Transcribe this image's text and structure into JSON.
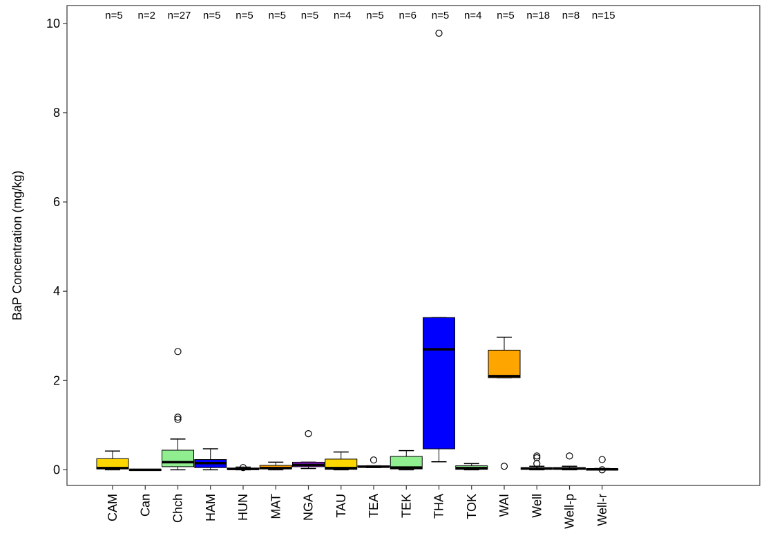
{
  "chart_data": {
    "type": "boxplot",
    "title": "",
    "xlabel": "",
    "ylabel": "BaP Concentration (mg/kg)",
    "ylim": [
      -0.35,
      10.4
    ],
    "yticks": [
      0,
      2,
      4,
      6,
      8,
      10
    ],
    "grid": false,
    "legend": "none",
    "categories": [
      "CAM",
      "Can",
      "Chch",
      "HAM",
      "HUN",
      "MAT",
      "NGA",
      "TAU",
      "TEA",
      "TEK",
      "THA",
      "TOK",
      "WAI",
      "Well",
      "Well-p",
      "Well-r"
    ],
    "n_labels": [
      "n=5",
      "n=2",
      "n=27",
      "n=5",
      "n=5",
      "n=5",
      "n=5",
      "n=4",
      "n=5",
      "n=6",
      "n=5",
      "n=4",
      "n=5",
      "n=18",
      "n=8",
      "n=15"
    ],
    "boxes": [
      {
        "category": "CAM",
        "color": "#ffd700",
        "whisker_low": 0.0,
        "q1": 0.02,
        "median": 0.04,
        "q3": 0.25,
        "whisker_high": 0.42,
        "outliers": []
      },
      {
        "category": "Can",
        "color": "#ffd700",
        "whisker_low": 0.0,
        "q1": 0.0,
        "median": 0.0,
        "q3": 0.01,
        "whisker_high": 0.01,
        "outliers": []
      },
      {
        "category": "Chch",
        "color": "#90ee90",
        "whisker_low": 0.0,
        "q1": 0.07,
        "median": 0.17,
        "q3": 0.44,
        "whisker_high": 0.69,
        "outliers": [
          1.13,
          1.18,
          2.65
        ]
      },
      {
        "category": "HAM",
        "color": "#0000ff",
        "whisker_low": 0.0,
        "q1": 0.05,
        "median": 0.15,
        "q3": 0.23,
        "whisker_high": 0.47,
        "outliers": []
      },
      {
        "category": "HUN",
        "color": "#ffd700",
        "whisker_low": 0.0,
        "q1": 0.01,
        "median": 0.02,
        "q3": 0.04,
        "whisker_high": 0.06,
        "outliers": [
          0.05
        ]
      },
      {
        "category": "MAT",
        "color": "#ffa500",
        "whisker_low": 0.0,
        "q1": 0.02,
        "median": 0.04,
        "q3": 0.1,
        "whisker_high": 0.17,
        "outliers": []
      },
      {
        "category": "NGA",
        "color": "#a020f0",
        "whisker_low": 0.03,
        "q1": 0.07,
        "median": 0.11,
        "q3": 0.17,
        "whisker_high": 0.17,
        "outliers": [
          0.81
        ]
      },
      {
        "category": "TAU",
        "color": "#ffd700",
        "whisker_low": 0.0,
        "q1": 0.01,
        "median": 0.04,
        "q3": 0.24,
        "whisker_high": 0.4,
        "outliers": []
      },
      {
        "category": "TEA",
        "color": "#90ee90",
        "whisker_low": 0.05,
        "q1": 0.06,
        "median": 0.07,
        "q3": 0.09,
        "whisker_high": 0.09,
        "outliers": [
          0.22
        ]
      },
      {
        "category": "TEK",
        "color": "#90ee90",
        "whisker_low": 0.0,
        "q1": 0.02,
        "median": 0.05,
        "q3": 0.3,
        "whisker_high": 0.43,
        "outliers": []
      },
      {
        "category": "THA",
        "color": "#0000ff",
        "whisker_low": 0.18,
        "q1": 0.47,
        "median": 2.7,
        "q3": 3.41,
        "whisker_high": 3.41,
        "outliers": [
          9.78
        ]
      },
      {
        "category": "TOK",
        "color": "#90ee90",
        "whisker_low": 0.0,
        "q1": 0.01,
        "median": 0.04,
        "q3": 0.09,
        "whisker_high": 0.14,
        "outliers": []
      },
      {
        "category": "WAI",
        "color": "#ffa500",
        "whisker_low": 2.06,
        "q1": 2.06,
        "median": 2.1,
        "q3": 2.68,
        "whisker_high": 2.97,
        "outliers": [
          0.08
        ]
      },
      {
        "category": "Well",
        "color": "#ffd700",
        "whisker_low": 0.0,
        "q1": 0.01,
        "median": 0.03,
        "q3": 0.05,
        "whisker_high": 0.08,
        "outliers": [
          0.14,
          0.27,
          0.31
        ]
      },
      {
        "category": "Well-p",
        "color": "#ffd700",
        "whisker_low": 0.0,
        "q1": 0.01,
        "median": 0.03,
        "q3": 0.05,
        "whisker_high": 0.08,
        "outliers": [
          0.31
        ]
      },
      {
        "category": "Well-r",
        "color": "#ffd700",
        "whisker_low": 0.0,
        "q1": 0.0,
        "median": 0.01,
        "q3": 0.02,
        "whisker_high": 0.03,
        "outliers": [
          0.0,
          0.23
        ]
      }
    ]
  }
}
